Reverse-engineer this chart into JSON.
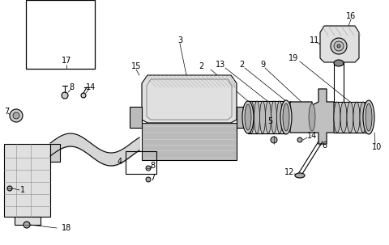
{
  "bg_color": "#ffffff",
  "line_color": "#000000",
  "gray_light": "#e0e0e0",
  "gray_mid": "#c8c8c8",
  "gray_dark": "#a0a0a0"
}
